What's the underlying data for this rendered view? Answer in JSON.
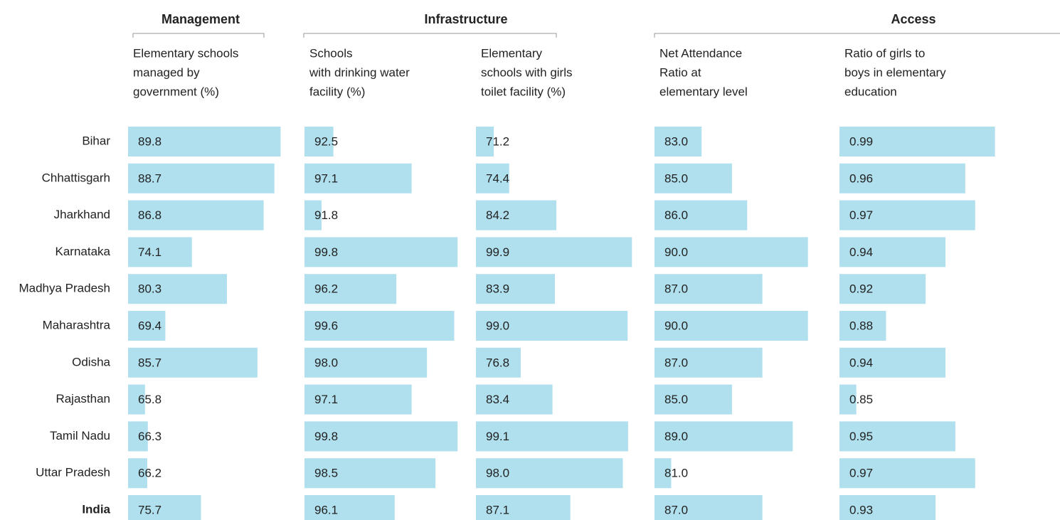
{
  "groups": [
    "Management",
    "Infrastructure",
    "Access"
  ],
  "chart_data": [
    {
      "type": "bar",
      "title": [
        "Elementary schools",
        "managed by",
        "government (%)"
      ],
      "categories": [
        "Bihar",
        "Chhattisgarh",
        "Jharkhand",
        "Karnataka",
        "Madhya Pradesh",
        "Maharashtra",
        "Odisha",
        "Rajasthan",
        "Tamil Nadu",
        "Uttar Pradesh",
        "India"
      ],
      "values": [
        89.8,
        88.7,
        86.8,
        74.1,
        80.3,
        69.4,
        85.7,
        65.8,
        66.3,
        66.2,
        75.7
      ],
      "color": "#b0e0ee",
      "xlim": [
        62.8,
        90.5
      ]
    },
    {
      "type": "bar",
      "title": [
        "Schools",
        "with drinking water",
        "facility (%)"
      ],
      "values": [
        92.5,
        97.1,
        91.8,
        99.8,
        96.2,
        99.6,
        98.0,
        97.1,
        99.8,
        98.5,
        96.1
      ],
      "value_labels": [
        "92.5",
        "97.1",
        "91.8",
        "99.8",
        "96.2",
        "99.6",
        "98.0",
        "97.1",
        "99.8",
        "98.5",
        "96.1"
      ],
      "color": "#b0e0ee",
      "xlim": [
        90.8,
        100
      ]
    },
    {
      "type": "bar",
      "title": [
        "Elementary",
        "schools with girls",
        "toilet facility (%)"
      ],
      "values": [
        71.2,
        74.4,
        84.2,
        99.9,
        83.9,
        99.0,
        76.8,
        83.4,
        99.1,
        98.0,
        87.1
      ],
      "value_labels": [
        "71.2",
        "74.4",
        "84.2",
        "99.9",
        "83.9",
        "99.0",
        "76.8",
        "83.4",
        "99.1",
        "98.0",
        "87.1"
      ],
      "color": "#b0e0ee",
      "xlim": [
        67.5,
        100
      ]
    },
    {
      "type": "bar",
      "title": [
        "Net Attendance",
        "Ratio at",
        "elementary level"
      ],
      "values": [
        83.0,
        85.0,
        86.0,
        90.0,
        87.0,
        90.0,
        87.0,
        85.0,
        89.0,
        81.0,
        87.0
      ],
      "value_labels": [
        "83.0",
        "85.0",
        "86.0",
        "90.0",
        "87.0",
        "90.0",
        "87.0",
        "85.0",
        "89.0",
        "81.0",
        "87.0"
      ],
      "color": "#b0e0ee",
      "xlim": [
        79.9,
        90.2
      ]
    },
    {
      "type": "bar",
      "title": [
        "Ratio of girls to",
        "boys in elementary",
        "education"
      ],
      "values": [
        0.99,
        0.96,
        0.97,
        0.94,
        0.92,
        0.88,
        0.94,
        0.85,
        0.95,
        0.97,
        0.93
      ],
      "color": "#b0e0ee",
      "xlim": [
        0.833,
        0.991
      ]
    }
  ]
}
